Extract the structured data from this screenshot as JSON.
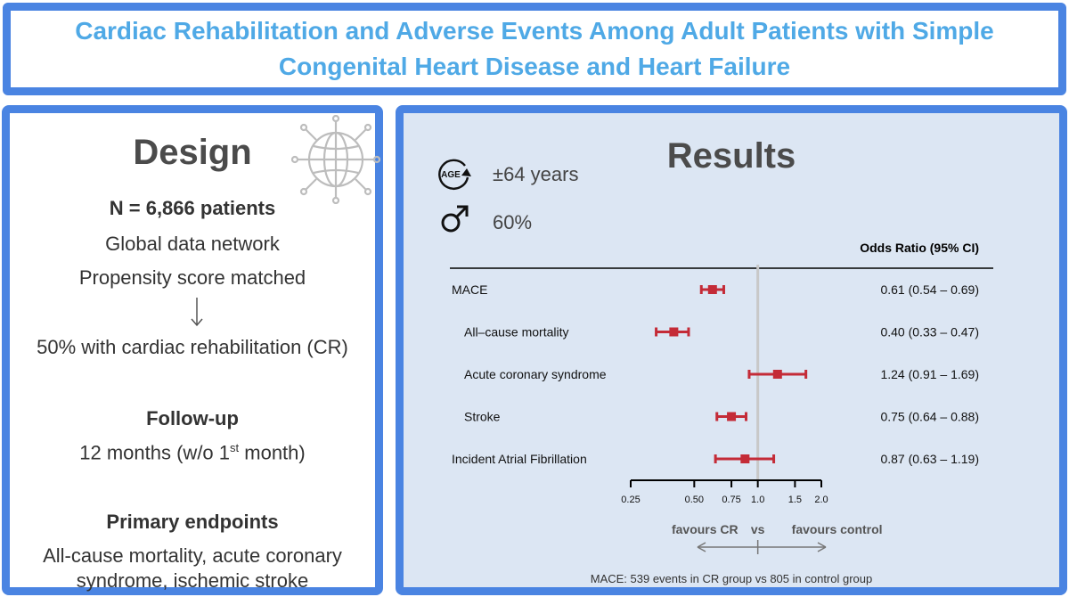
{
  "title": {
    "line1": "Cardiac Rehabilitation and Adverse Events Among Adult Patients with Simple",
    "line2": "Congenital Heart Disease and Heart Failure"
  },
  "design": {
    "heading": "Design",
    "globe_icon": "globe-network-icon",
    "n_patients": "N = 6,866 patients",
    "network": "Global data network",
    "matching": "Propensity score matched",
    "cr_share": "50% with cardiac rehabilitation (CR)",
    "followup_heading": "Follow-up",
    "followup_pre": "12 months (w/o 1",
    "followup_sup": "st",
    "followup_post": " month)",
    "endpoints_heading": "Primary endpoints",
    "endpoints_line1": "All-cause mortality, acute coronary",
    "endpoints_line2": "syndrome, ischemic stroke"
  },
  "results": {
    "heading": "Results",
    "age_icon_label": "AGE",
    "age_text": "±64 years",
    "male_text": "60%",
    "colors": {
      "marker": "#c42b37",
      "reference_line": "#c8c8c8",
      "axis": "#000000"
    }
  },
  "chart_data": {
    "type": "forest",
    "column_header": "Odds Ratio (95% CI)",
    "x_scale": "log",
    "xlim": [
      0.25,
      2.0
    ],
    "ticks": [
      0.25,
      0.5,
      0.75,
      1.0,
      1.5,
      2.0
    ],
    "tick_labels": [
      "0.25",
      "0.50",
      "0.75",
      "1.0",
      "1.5",
      "2.0"
    ],
    "reference_value": 1.0,
    "left_direction": "favours CR",
    "middle_label": "vs",
    "right_direction": "favours control",
    "rows": [
      {
        "label": "MACE",
        "indent": 0,
        "or": 0.61,
        "lo": 0.54,
        "hi": 0.69,
        "text": "0.61 (0.54 – 0.69)"
      },
      {
        "label": "All–cause mortality",
        "indent": 1,
        "or": 0.4,
        "lo": 0.33,
        "hi": 0.47,
        "text": "0.40 (0.33 – 0.47)"
      },
      {
        "label": "Acute coronary syndrome",
        "indent": 1,
        "or": 1.24,
        "lo": 0.91,
        "hi": 1.69,
        "text": "1.24 (0.91 – 1.69)"
      },
      {
        "label": "Stroke",
        "indent": 1,
        "or": 0.75,
        "lo": 0.64,
        "hi": 0.88,
        "text": "0.75 (0.64 – 0.88)"
      },
      {
        "label": "Incident Atrial Fibrillation",
        "indent": 0,
        "or": 0.87,
        "lo": 0.63,
        "hi": 1.19,
        "text": "0.87 (0.63 – 1.19)"
      }
    ],
    "footnote": "MACE: 539 events in CR group vs 805 in control group"
  }
}
